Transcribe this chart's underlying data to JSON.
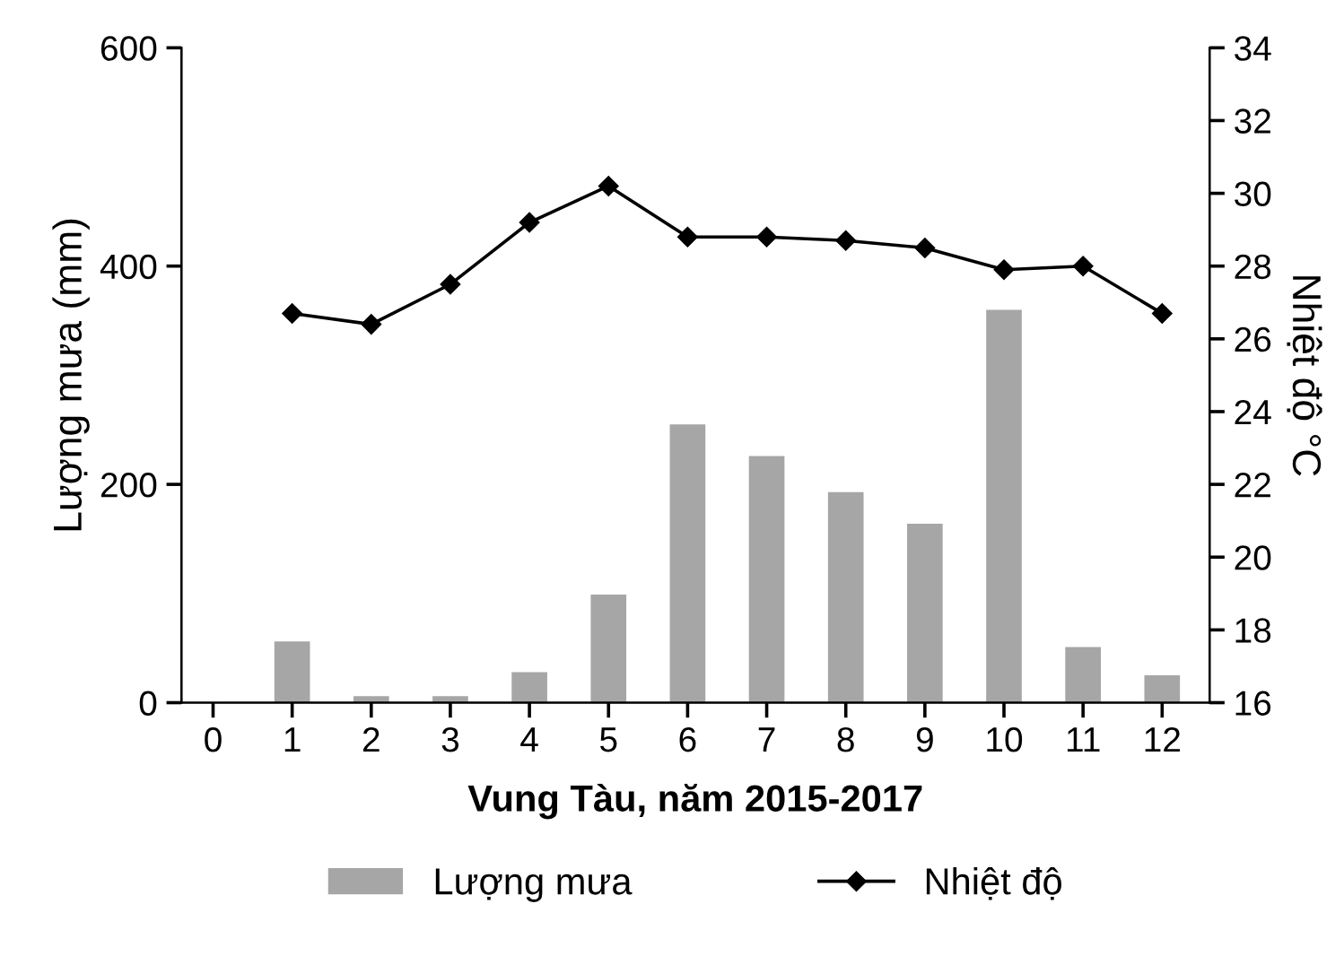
{
  "chart_data": {
    "type": "bar",
    "xlabel": "Vung Tàu, năm 2015-2017",
    "ylabel": "Lượng mưa (mm)",
    "y2label": "Nhiệt độ °C",
    "x": [
      1,
      2,
      3,
      4,
      5,
      6,
      7,
      8,
      9,
      10,
      11,
      12
    ],
    "xlim": [
      -0.4,
      12.6
    ],
    "xticks": [
      0,
      1,
      2,
      3,
      4,
      5,
      6,
      7,
      8,
      9,
      10,
      11,
      12
    ],
    "ylim": [
      0,
      600
    ],
    "yticks": [
      0,
      200,
      400,
      600
    ],
    "y2lim": [
      16,
      34
    ],
    "y2ticks": [
      16,
      18,
      20,
      22,
      24,
      26,
      28,
      30,
      32,
      34
    ],
    "grid": false,
    "legend": "bottom",
    "series": [
      {
        "name": "Lượng mưa",
        "color": "#a6a6a6",
        "values": [
          56,
          6,
          6,
          28,
          99,
          255,
          226,
          193,
          164,
          360,
          51,
          25
        ]
      },
      {
        "name": "Nhiệt độ",
        "type": "line",
        "axis": "y2",
        "color": "#000000",
        "marker": "diamond",
        "line_style": "solid",
        "values": [
          26.7,
          26.4,
          27.5,
          29.2,
          30.2,
          28.8,
          28.8,
          28.7,
          28.5,
          27.9,
          28.0,
          26.7
        ]
      }
    ]
  }
}
